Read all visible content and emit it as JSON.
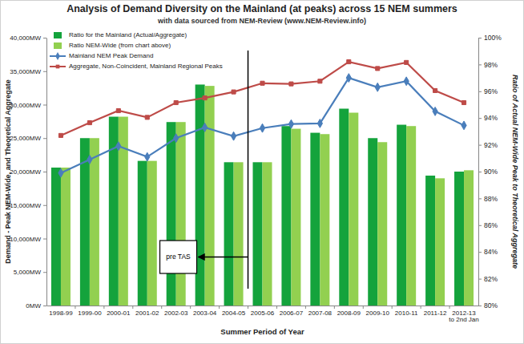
{
  "chart_data": {
    "type": "bar",
    "title": "Analysis of Demand Diversity on the Mainland (at peaks) across 15 NEM summers",
    "subtitle": "with data sourced from NEM-Review (www.NEM-Review.info)",
    "xlabel": "Summer Period of Year",
    "ylabel": "Demand - Peak NEM-Wide, and Theoretical Aggregate",
    "y2label": "Ratio of Actual NEM-Wide Peak to Theoretical Aggregate",
    "categories": [
      "1998-99",
      "1999-00",
      "2000-01",
      "2001-02",
      "2002-03",
      "2003-04",
      "2004-05",
      "2005-06",
      "2006-07",
      "2007-08",
      "2008-09",
      "2009-10",
      "2010-11",
      "2011-12",
      "2012-13 to 2nd Jan"
    ],
    "ylim": [
      0,
      40000
    ],
    "yticks": [
      {
        "value": 0,
        "label": "0MW"
      },
      {
        "value": 5000,
        "label": "5,000MW"
      },
      {
        "value": 10000,
        "label": "10,000MW"
      },
      {
        "value": 15000,
        "label": "15,000MW"
      },
      {
        "value": 20000,
        "label": "20,000MW"
      },
      {
        "value": 25000,
        "label": "25,000MW"
      },
      {
        "value": 30000,
        "label": "30,000MW"
      },
      {
        "value": 35000,
        "label": "35,000MW"
      },
      {
        "value": 40000,
        "label": "40,000MW"
      }
    ],
    "y2lim": [
      80,
      100
    ],
    "y2ticks": [
      {
        "value": 80,
        "label": "80%"
      },
      {
        "value": 82,
        "label": "82%"
      },
      {
        "value": 84,
        "label": "84%"
      },
      {
        "value": 86,
        "label": "86%"
      },
      {
        "value": 88,
        "label": "88%"
      },
      {
        "value": 90,
        "label": "90%"
      },
      {
        "value": 92,
        "label": "92%"
      },
      {
        "value": 94,
        "label": "94%"
      },
      {
        "value": 96,
        "label": "96%"
      },
      {
        "value": 98,
        "label": "98%"
      },
      {
        "value": 100,
        "label": "100%"
      }
    ],
    "grid": false,
    "legend": "top-left",
    "series": [
      {
        "name": "Ratio for the Mainland (Actual/Aggregate)",
        "type": "bar",
        "axis": "y2",
        "color": "#14a33c",
        "values": [
          90.3,
          92.5,
          94.1,
          90.8,
          93.7,
          96.5,
          90.7,
          90.7,
          93.4,
          92.9,
          94.7,
          92.5,
          93.5,
          89.7,
          90.0
        ]
      },
      {
        "name": "Ratio NEM-Wide (from chart above)",
        "type": "bar",
        "axis": "y2",
        "color": "#92d050",
        "values": [
          90.3,
          92.5,
          94.1,
          90.8,
          93.7,
          96.4,
          90.7,
          90.7,
          93.2,
          92.8,
          94.4,
          92.2,
          93.4,
          89.5,
          90.1
        ]
      },
      {
        "name": "Mainland NEM Peak Demand",
        "type": "line",
        "color": "#4a7ebb",
        "marker": "diamond",
        "values": [
          19800,
          21800,
          23800,
          22200,
          25000,
          26600,
          25300,
          26500,
          27100,
          27200,
          34000,
          32600,
          33500,
          29000,
          26900
        ]
      },
      {
        "name": "Aggregate, Non-Coincident, Mainland Regional Peaks",
        "type": "line",
        "color": "#be4b48",
        "marker": "square",
        "values": [
          25400,
          27300,
          29100,
          28100,
          30300,
          31000,
          31900,
          33200,
          33100,
          33500,
          36400,
          35400,
          36300,
          32100,
          30300
        ]
      }
    ],
    "annotations": [
      {
        "text": "pre TAS"
      }
    ]
  }
}
